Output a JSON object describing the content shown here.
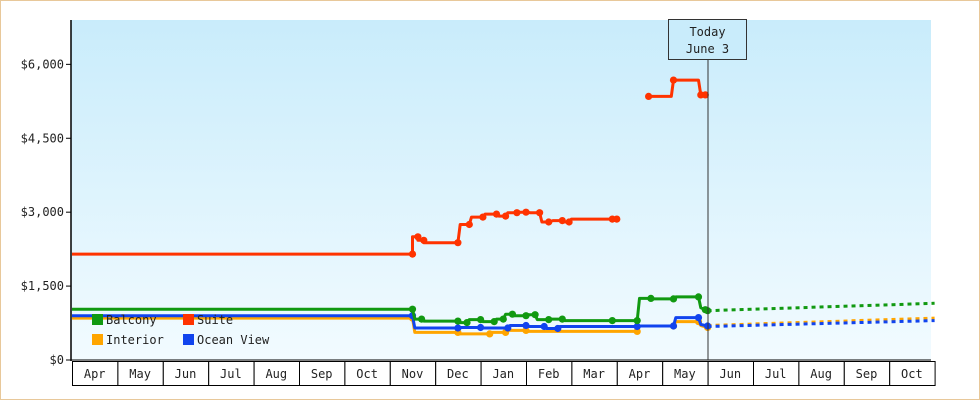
{
  "chart_data": {
    "type": "line",
    "title": "",
    "xlabel": "",
    "ylabel": "",
    "x_axis": {
      "type": "month",
      "tick_labels": [
        "Apr",
        "May",
        "Jun",
        "Jul",
        "Aug",
        "Sep",
        "Oct",
        "Nov",
        "Dec",
        "Jan",
        "Feb",
        "Mar",
        "Apr",
        "May",
        "Jun",
        "Jul",
        "Aug",
        "Sep",
        "Oct"
      ]
    },
    "y_axis": {
      "min": 0,
      "max": 6900,
      "ticks": [
        0,
        1500,
        3000,
        4500,
        6000
      ],
      "tick_labels": [
        "$0",
        "$1,500",
        "$3,000",
        "$4,500",
        "$6,000"
      ]
    },
    "grid": false,
    "legend": {
      "position": "bottom-left",
      "entries": [
        "Balcony",
        "Suite",
        "Interior",
        "Ocean View"
      ]
    },
    "annotation": {
      "line1": "Today",
      "line2": "June 3",
      "month_index": 14.0
    },
    "colors": {
      "Balcony": "#119911",
      "Suite": "#ff3300",
      "Interior": "#ffa500",
      "Ocean View": "#1144ee"
    },
    "series": [
      {
        "name": "Suite",
        "points": [
          [
            -0.5,
            2150
          ],
          [
            7.0,
            2150
          ],
          [
            7.0,
            2500
          ],
          [
            7.12,
            2500
          ],
          [
            7.12,
            2430
          ],
          [
            7.25,
            2430
          ],
          [
            7.25,
            2380
          ],
          [
            8.0,
            2380
          ],
          [
            8.05,
            2750
          ],
          [
            8.25,
            2750
          ],
          [
            8.3,
            2900
          ],
          [
            8.55,
            2900
          ],
          [
            8.6,
            2960
          ],
          [
            8.85,
            2960
          ],
          [
            8.9,
            2920
          ],
          [
            9.05,
            2920
          ],
          [
            9.1,
            2990
          ],
          [
            9.3,
            2990
          ],
          [
            9.35,
            3000
          ],
          [
            9.5,
            3000
          ],
          [
            9.6,
            2990
          ],
          [
            9.8,
            2990
          ],
          [
            9.85,
            2800
          ],
          [
            10.0,
            2800
          ],
          [
            10.1,
            2830
          ],
          [
            10.3,
            2830
          ],
          [
            10.35,
            2800
          ],
          [
            10.45,
            2800
          ],
          [
            10.5,
            2860
          ],
          [
            11.4,
            2860
          ],
          [
            11.5,
            2860
          ]
        ],
        "points2": [
          [
            12.2,
            5350
          ],
          [
            12.7,
            5350
          ],
          [
            12.75,
            5680
          ],
          [
            13.3,
            5680
          ],
          [
            13.35,
            5380
          ],
          [
            13.45,
            5380
          ]
        ]
      },
      {
        "name": "Balcony",
        "points": [
          [
            -0.5,
            1030
          ],
          [
            7.0,
            1030
          ],
          [
            7.05,
            830
          ],
          [
            7.2,
            830
          ],
          [
            7.25,
            790
          ],
          [
            8.0,
            790
          ],
          [
            8.05,
            760
          ],
          [
            8.2,
            760
          ],
          [
            8.25,
            820
          ],
          [
            8.5,
            820
          ],
          [
            8.55,
            780
          ],
          [
            8.8,
            780
          ],
          [
            8.85,
            830
          ],
          [
            9.0,
            830
          ],
          [
            9.05,
            930
          ],
          [
            9.2,
            930
          ],
          [
            9.25,
            900
          ],
          [
            9.5,
            900
          ],
          [
            9.55,
            920
          ],
          [
            9.7,
            920
          ],
          [
            9.75,
            820
          ],
          [
            10.0,
            820
          ],
          [
            10.05,
            830
          ],
          [
            10.3,
            830
          ],
          [
            10.35,
            800
          ],
          [
            11.4,
            800
          ],
          [
            11.5,
            800
          ],
          [
            11.95,
            800
          ],
          [
            12.0,
            1250
          ],
          [
            12.25,
            1250
          ],
          [
            12.3,
            1240
          ],
          [
            12.75,
            1240
          ],
          [
            12.8,
            1280
          ],
          [
            13.3,
            1280
          ],
          [
            13.35,
            1060
          ],
          [
            13.45,
            1020
          ],
          [
            13.5,
            1000
          ]
        ],
        "forecast": [
          [
            13.5,
            1000
          ],
          [
            18.5,
            1150
          ]
        ]
      },
      {
        "name": "Interior",
        "points": [
          [
            -0.5,
            850
          ],
          [
            7.0,
            850
          ],
          [
            7.05,
            560
          ],
          [
            8.0,
            560
          ],
          [
            8.05,
            530
          ],
          [
            8.7,
            530
          ],
          [
            8.75,
            560
          ],
          [
            9.05,
            560
          ],
          [
            9.1,
            600
          ],
          [
            9.5,
            600
          ],
          [
            9.55,
            580
          ],
          [
            11.95,
            580
          ],
          [
            12.0,
            690
          ],
          [
            12.75,
            690
          ],
          [
            12.8,
            780
          ],
          [
            13.3,
            780
          ],
          [
            13.35,
            700
          ],
          [
            13.5,
            660
          ]
        ],
        "forecast": [
          [
            13.5,
            700
          ],
          [
            18.5,
            850
          ]
        ]
      },
      {
        "name": "Ocean View",
        "points": [
          [
            -0.5,
            900
          ],
          [
            7.0,
            900
          ],
          [
            7.05,
            650
          ],
          [
            8.0,
            650
          ],
          [
            8.05,
            660
          ],
          [
            8.5,
            660
          ],
          [
            8.55,
            650
          ],
          [
            9.1,
            650
          ],
          [
            9.15,
            700
          ],
          [
            9.5,
            700
          ],
          [
            9.55,
            680
          ],
          [
            9.9,
            680
          ],
          [
            9.95,
            640
          ],
          [
            10.2,
            640
          ],
          [
            10.25,
            680
          ],
          [
            11.95,
            680
          ],
          [
            12.0,
            690
          ],
          [
            12.75,
            690
          ],
          [
            12.8,
            860
          ],
          [
            13.3,
            860
          ],
          [
            13.35,
            720
          ],
          [
            13.5,
            690
          ]
        ],
        "forecast": [
          [
            13.5,
            680
          ],
          [
            18.5,
            800
          ]
        ]
      }
    ]
  }
}
